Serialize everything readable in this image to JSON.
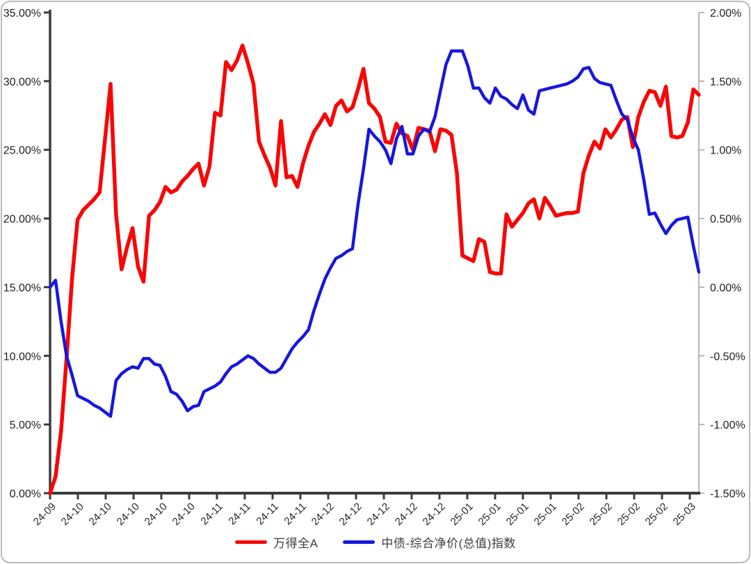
{
  "chart_data": {
    "type": "line",
    "title": "",
    "grid": false,
    "legend_position": "bottom",
    "x_tick_labels": [
      "24-09",
      "24-10",
      "24-10",
      "24-10",
      "24-10",
      "24-10",
      "24-11",
      "24-11",
      "24-11",
      "24-11",
      "24-12",
      "24-12",
      "24-12",
      "24-12",
      "24-12",
      "25-01",
      "25-01",
      "25-01",
      "25-01",
      "25-02",
      "25-02",
      "25-02",
      "25-02",
      "25-03"
    ],
    "left_axis": {
      "min": 0,
      "max": 35,
      "step": 5,
      "labels": [
        "35.00%",
        "30.00%",
        "25.00%",
        "20.00%",
        "15.00%",
        "10.00%",
        "5.00%",
        "0.00%"
      ]
    },
    "right_axis": {
      "min": -1.5,
      "max": 2.0,
      "step": 0.5,
      "labels": [
        "2.00%",
        "1.50%",
        "1.00%",
        "0.50%",
        "0.00%",
        "-0.50%",
        "-1.00%",
        "-1.50%"
      ]
    },
    "series": [
      {
        "name": "万得全A",
        "axis": "left",
        "color": "#F90606",
        "width": 5.5,
        "values": [
          0.0,
          1.2,
          4.5,
          9.8,
          15.6,
          19.9,
          20.6,
          21.0,
          21.4,
          21.9,
          25.8,
          29.8,
          20.3,
          16.3,
          17.9,
          19.3,
          16.5,
          15.4,
          20.2,
          20.6,
          21.2,
          22.3,
          21.9,
          22.1,
          22.7,
          23.1,
          23.6,
          24.0,
          22.4,
          23.8,
          27.7,
          27.5,
          31.4,
          30.8,
          31.5,
          32.6,
          31.3,
          29.8,
          25.6,
          24.6,
          23.7,
          22.4,
          27.1,
          23.0,
          23.1,
          22.3,
          24.0,
          25.3,
          26.3,
          26.9,
          27.6,
          26.8,
          28.2,
          28.6,
          27.8,
          28.1,
          29.4,
          30.9,
          28.4,
          28.0,
          27.4,
          25.6,
          25.5,
          26.9,
          26.2,
          26.0,
          25.0,
          26.6,
          26.5,
          26.4,
          24.9,
          26.5,
          26.4,
          26.1,
          23.3,
          17.3,
          17.1,
          16.9,
          18.5,
          18.3,
          16.1,
          16.0,
          16.0,
          20.3,
          19.4,
          19.9,
          20.4,
          21.1,
          21.4,
          20.0,
          21.5,
          20.9,
          20.2,
          20.3,
          20.4,
          20.4,
          20.5,
          23.3,
          24.6,
          25.6,
          25.1,
          26.5,
          25.9,
          26.5,
          27.2,
          27.4,
          25.2,
          27.4,
          28.5,
          29.3,
          29.2,
          28.2,
          29.6,
          26.0,
          25.9,
          26.0,
          27.0,
          29.4,
          29.0
        ]
      },
      {
        "name": "中债-综合净价(总值)指数",
        "axis": "right",
        "color": "#1717DC",
        "width": 4.5,
        "values": [
          0.0,
          0.05,
          -0.25,
          -0.5,
          -0.64,
          -0.79,
          -0.81,
          -0.83,
          -0.86,
          -0.88,
          -0.91,
          -0.94,
          -0.68,
          -0.63,
          -0.6,
          -0.58,
          -0.59,
          -0.52,
          -0.52,
          -0.56,
          -0.57,
          -0.65,
          -0.76,
          -0.78,
          -0.83,
          -0.9,
          -0.87,
          -0.86,
          -0.76,
          -0.74,
          -0.72,
          -0.69,
          -0.63,
          -0.58,
          -0.56,
          -0.53,
          -0.5,
          -0.52,
          -0.56,
          -0.59,
          -0.62,
          -0.62,
          -0.59,
          -0.52,
          -0.45,
          -0.4,
          -0.36,
          -0.31,
          -0.17,
          -0.05,
          0.06,
          0.14,
          0.21,
          0.23,
          0.26,
          0.28,
          0.6,
          0.86,
          1.15,
          1.1,
          1.06,
          1.0,
          0.9,
          1.08,
          1.17,
          0.97,
          0.97,
          1.1,
          1.15,
          1.13,
          1.24,
          1.43,
          1.62,
          1.72,
          1.72,
          1.72,
          1.61,
          1.45,
          1.45,
          1.38,
          1.34,
          1.45,
          1.39,
          1.37,
          1.33,
          1.3,
          1.4,
          1.29,
          1.26,
          1.43,
          1.44,
          1.45,
          1.46,
          1.47,
          1.48,
          1.5,
          1.53,
          1.59,
          1.6,
          1.52,
          1.49,
          1.48,
          1.47,
          1.36,
          1.26,
          1.22,
          1.09,
          1.0,
          0.78,
          0.53,
          0.54,
          0.46,
          0.39,
          0.45,
          0.49,
          0.5,
          0.51,
          0.3,
          0.11
        ]
      }
    ],
    "style": {
      "axis_dark_color": "#3b3b3b",
      "axis_light_color": "#a6a6a6",
      "background": "#ffffff"
    }
  }
}
